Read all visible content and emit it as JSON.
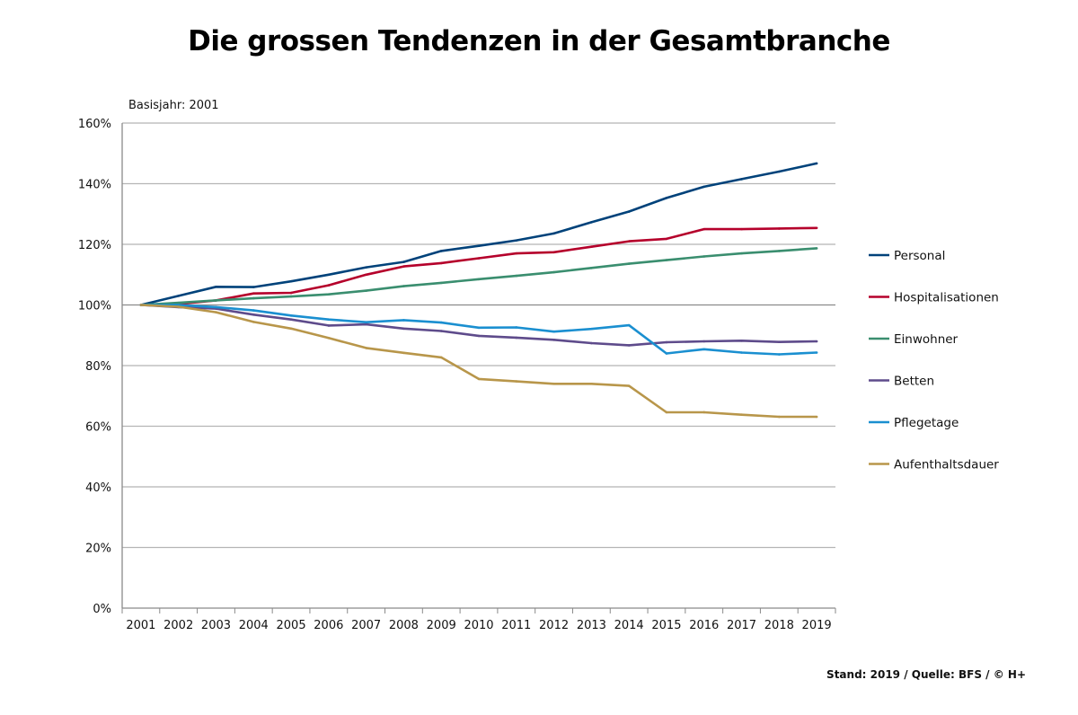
{
  "chart_data": {
    "type": "line",
    "title": "Die grossen Tendenzen in der Gesamtbranche",
    "subtitle": "Basisjahr: 2001",
    "source": "Stand: 2019 / Quelle: BFS / © H+",
    "xlabel": "",
    "ylabel": "",
    "ylim": [
      0,
      160
    ],
    "yticks": [
      "0%",
      "20%",
      "40%",
      "60%",
      "80%",
      "100%",
      "120%",
      "140%",
      "160%"
    ],
    "grid": true,
    "legend_position": "right",
    "x": [
      "2001",
      "2002",
      "2003",
      "2004",
      "2005",
      "2006",
      "2007",
      "2008",
      "2009",
      "2010",
      "2011",
      "2012",
      "2013",
      "2014",
      "2015",
      "2016",
      "2017",
      "2018",
      "2019"
    ],
    "series": [
      {
        "name": "Personal",
        "color": "#00427a",
        "values": [
          100,
          103,
          106,
          105.9,
          107.8,
          110,
          112.4,
          114.2,
          117.8,
          119.5,
          121.3,
          123.6,
          127.3,
          130.8,
          135.3,
          139,
          141.5,
          144,
          146.7
        ]
      },
      {
        "name": "Hospitalisationen",
        "color": "#b5002b",
        "values": [
          100,
          100.3,
          101.5,
          103.8,
          104,
          106.5,
          110,
          112.7,
          113.8,
          115.4,
          117,
          117.4,
          119.2,
          121,
          121.8,
          125,
          125,
          125.2,
          125.4
        ]
      },
      {
        "name": "Einwohner",
        "color": "#3a8e6f",
        "values": [
          100,
          100.7,
          101.5,
          102.2,
          102.8,
          103.5,
          104.7,
          106.2,
          107.3,
          108.5,
          109.6,
          110.8,
          112.2,
          113.6,
          114.8,
          116,
          117,
          117.8,
          118.7
        ]
      },
      {
        "name": "Betten",
        "color": "#5e4b8b",
        "values": [
          100,
          99.3,
          98.8,
          96.8,
          95.2,
          93.2,
          93.6,
          92.2,
          91.4,
          89.8,
          89.2,
          88.5,
          87.4,
          86.7,
          87.7,
          88,
          88.2,
          87.8,
          88
        ]
      },
      {
        "name": "Pflegetage",
        "color": "#1a8fd0",
        "values": [
          100,
          100,
          99.3,
          98.2,
          96.5,
          95.2,
          94.3,
          95,
          94.2,
          92.5,
          92.6,
          91.2,
          92.1,
          93.3,
          84,
          85.4,
          84.3,
          83.7,
          84.3
        ]
      },
      {
        "name": "Aufenthaltsdauer",
        "color": "#b8964a",
        "values": [
          100,
          99.4,
          97.6,
          94.4,
          92.2,
          89.1,
          85.8,
          84.2,
          82.7,
          75.6,
          74.8,
          74,
          74,
          73.3,
          64.6,
          64.6,
          63.8,
          63.1,
          63.1
        ]
      }
    ]
  }
}
